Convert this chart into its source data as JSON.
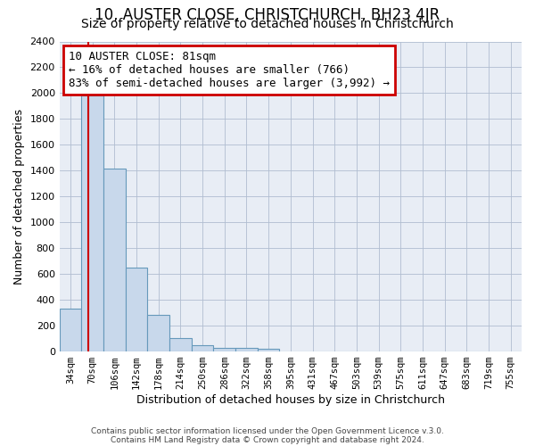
{
  "title": "10, AUSTER CLOSE, CHRISTCHURCH, BH23 4JR",
  "subtitle": "Size of property relative to detached houses in Christchurch",
  "xlabel": "Distribution of detached houses by size in Christchurch",
  "ylabel": "Number of detached properties",
  "bar_labels": [
    "34sqm",
    "70sqm",
    "106sqm",
    "142sqm",
    "178sqm",
    "214sqm",
    "250sqm",
    "286sqm",
    "322sqm",
    "358sqm",
    "395sqm",
    "431sqm",
    "467sqm",
    "503sqm",
    "539sqm",
    "575sqm",
    "611sqm",
    "647sqm",
    "683sqm",
    "719sqm",
    "755sqm"
  ],
  "bar_values": [
    330,
    1980,
    1415,
    650,
    285,
    105,
    50,
    30,
    25,
    20,
    0,
    0,
    0,
    0,
    0,
    0,
    0,
    0,
    0,
    0,
    0
  ],
  "bar_color": "#c8d8eb",
  "bar_edge_color": "#6699bb",
  "red_line_x": 1.31,
  "property_size": "81sqm",
  "pct_smaller": "16%",
  "n_smaller": "766",
  "pct_larger": "83%",
  "n_larger": "3,992",
  "ylim": [
    0,
    2400
  ],
  "yticks": [
    0,
    200,
    400,
    600,
    800,
    1000,
    1200,
    1400,
    1600,
    1800,
    2000,
    2200,
    2400
  ],
  "annotation_box_color": "#ffffff",
  "annotation_box_edge": "#cc0000",
  "title_fontsize": 12,
  "subtitle_fontsize": 10,
  "footer1": "Contains HM Land Registry data © Crown copyright and database right 2024.",
  "footer2": "Contains public sector information licensed under the Open Government Licence v.3.0.",
  "bg_color": "#e8edf5"
}
